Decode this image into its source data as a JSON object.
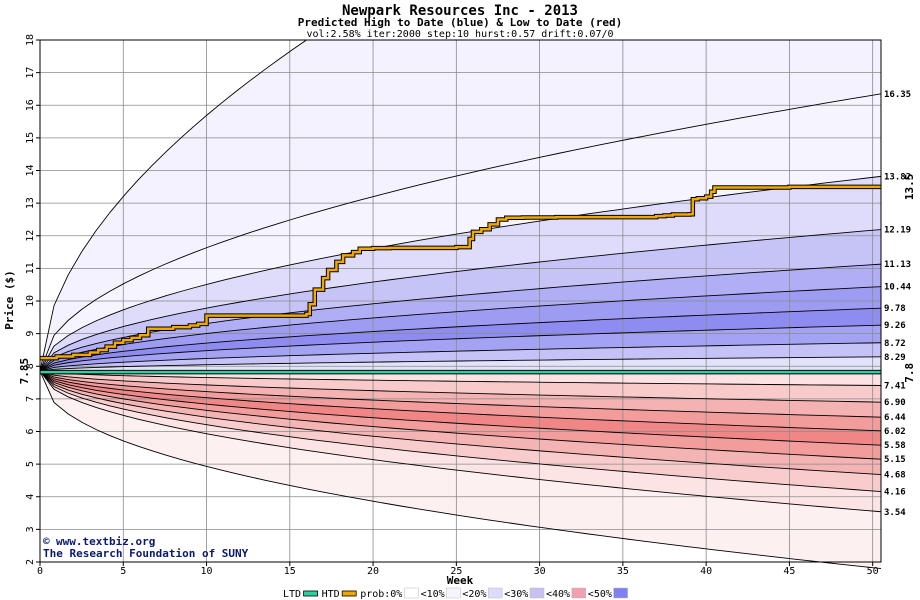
{
  "chart_data": {
    "type": "area",
    "title": "Newpark Resources Inc - 2013",
    "subtitle": "Predicted High to Date (blue) &  Low to Date (red)",
    "params": "vol:2.58% iter:2000 step:10 hurst:0.57 drift:0.07/0",
    "xlabel": "Week",
    "ylabel": "Price ($)",
    "xlim": [
      0,
      50.5
    ],
    "ylim": [
      2,
      18
    ],
    "x_ticks": [
      0,
      5,
      10,
      15,
      20,
      25,
      30,
      35,
      40,
      45,
      50
    ],
    "y_ticks": [
      2,
      3,
      4,
      5,
      6,
      7,
      8,
      9,
      10,
      11,
      12,
      13,
      14,
      15,
      16,
      17,
      18
    ],
    "start_price": 7.85,
    "start_label": "7.85",
    "grid": true,
    "high_percentile_end_values": [
      16.35,
      13.82,
      12.19,
      11.13,
      10.44,
      9.78,
      9.26,
      8.72,
      8.29
    ],
    "low_percentile_end_values": [
      7.41,
      6.9,
      6.44,
      6.02,
      5.58,
      5.15,
      4.68,
      4.16,
      3.54
    ],
    "end_labels": [
      "16.35",
      "13.82",
      "12.19",
      "11.13",
      "10.44",
      "9.78",
      "9.26",
      "8.72",
      "8.29",
      "7.41",
      "6.90",
      "6.44",
      "6.02",
      "5.58",
      "5.15",
      "4.68",
      "4.16",
      "3.54"
    ],
    "envelope_upper_max": 18,
    "envelope_lower_end": 1.8,
    "series": [
      {
        "name": "HTD",
        "color": "#f0a800",
        "label_value": "13.5",
        "x": [
          0,
          1,
          2,
          3,
          3.5,
          4,
          4.5,
          5,
          5.5,
          6,
          6.5,
          8,
          9,
          9.5,
          10,
          16,
          16.2,
          16.5,
          17,
          17.3,
          17.8,
          18.2,
          18.8,
          19.2,
          20,
          21,
          25,
          25.8,
          26,
          26.5,
          27,
          27.5,
          28,
          29,
          31,
          37,
          37.5,
          38,
          39,
          39.2,
          39.5,
          40,
          40.3,
          40.5,
          45,
          50.5
        ],
        "values": [
          8.25,
          8.3,
          8.35,
          8.42,
          8.5,
          8.6,
          8.72,
          8.8,
          8.87,
          8.95,
          9.15,
          9.2,
          9.25,
          9.3,
          9.55,
          9.6,
          9.9,
          10.35,
          10.7,
          10.95,
          11.2,
          11.4,
          11.5,
          11.6,
          11.62,
          11.63,
          11.65,
          11.9,
          12.12,
          12.2,
          12.35,
          12.5,
          12.55,
          12.56,
          12.57,
          12.6,
          12.62,
          12.65,
          12.66,
          13.12,
          13.15,
          13.2,
          13.35,
          13.48,
          13.5,
          13.5
        ]
      },
      {
        "name": "LTD",
        "color": "#2ad0a0",
        "label_value": "7.8",
        "x": [
          0,
          50.5
        ],
        "values": [
          7.82,
          7.82
        ]
      }
    ],
    "legend": [
      "LTD",
      "HTD",
      "prob:0%",
      "<10%",
      "<20%",
      "<30%",
      "<40%",
      "<50%"
    ],
    "legend_colors": [
      "#2ad0a0",
      "#f0a800",
      "#ffffff",
      "#f8f4ff",
      "#dcdcfa",
      "#c8c0f0",
      "#f0a0b0",
      "#8080f0"
    ]
  },
  "credit": {
    "site": "www.textbiz.org",
    "org": "The Research Foundation of SUNY"
  }
}
